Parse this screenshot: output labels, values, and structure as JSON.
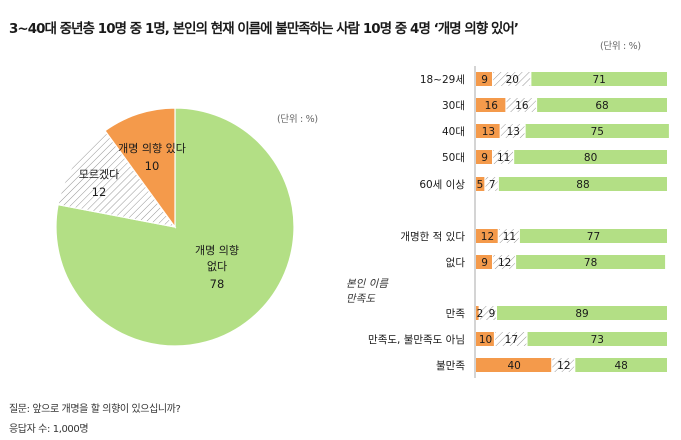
{
  "title": "3~40대 중년층 10명 중 1명, 본인의 현재 이름에 불만족하는 사람 10명 중 4명 ‘개명 의향 있어’",
  "colors": {
    "yes": "#f49a4b",
    "dontknow": "#ffffff",
    "no": "#b3df85",
    "text": "#1a1a1a"
  },
  "pie": {
    "unit": "(단위 : %)",
    "slices": [
      {
        "key": "no",
        "label": "개명 의향\n없다",
        "value": 78
      },
      {
        "key": "dontknow",
        "label": "모르겠다",
        "value": 12
      },
      {
        "key": "yes",
        "label": "개명 의향 있다",
        "value": 10
      }
    ]
  },
  "bars": {
    "unit": "(단위 : %)",
    "group_label": "본인 이름\n만족도",
    "rows": [
      {
        "label": "18~29세",
        "values": [
          9,
          20,
          71
        ]
      },
      {
        "label": "30대",
        "values": [
          16,
          16,
          68
        ]
      },
      {
        "label": "40대",
        "values": [
          13,
          13,
          75
        ]
      },
      {
        "label": "50대",
        "values": [
          9,
          11,
          80
        ]
      },
      {
        "label": "60세 이상",
        "values": [
          5,
          7,
          88
        ]
      },
      {
        "label": "개명한 적 있다",
        "values": [
          12,
          11,
          77
        ]
      },
      {
        "label": "없다",
        "values": [
          9,
          12,
          78
        ]
      },
      {
        "label": "만족",
        "values": [
          2,
          9,
          89
        ]
      },
      {
        "label": "만족도, 불만족도 아님",
        "values": [
          10,
          17,
          73
        ]
      },
      {
        "label": "불만족",
        "values": [
          40,
          12,
          48
        ]
      }
    ]
  },
  "chart_data": [
    {
      "type": "pie",
      "title": "3~40대 중년층 10명 중 1명, 본인의 현재 이름에 불만족하는 사람 10명 중 4명 ‘개명 의향 있어’",
      "unit": "%",
      "categories": [
        "개명 의향 없다",
        "모르겠다",
        "개명 의향 있다"
      ],
      "values": [
        78,
        12,
        10
      ]
    },
    {
      "type": "bar",
      "orientation": "horizontal",
      "stacked": true,
      "unit": "%",
      "categories": [
        "18~29세",
        "30대",
        "40대",
        "50대",
        "60세 이상",
        "개명한 적 있다",
        "없다",
        "만족",
        "만족도, 불만족도 아님",
        "불만족"
      ],
      "series": [
        {
          "name": "개명 의향 있다",
          "values": [
            9,
            16,
            13,
            9,
            5,
            12,
            9,
            2,
            10,
            40
          ]
        },
        {
          "name": "모르겠다",
          "values": [
            20,
            16,
            13,
            11,
            7,
            11,
            12,
            9,
            17,
            12
          ]
        },
        {
          "name": "개명 의향 없다",
          "values": [
            71,
            68,
            75,
            80,
            88,
            77,
            78,
            89,
            73,
            48
          ]
        }
      ],
      "xlim": [
        0,
        100
      ]
    }
  ],
  "footnote": {
    "question": "질문:  앞으로 개명을 할 의향이 있으십니까?",
    "sample": "응답자 수: 1,000명"
  }
}
